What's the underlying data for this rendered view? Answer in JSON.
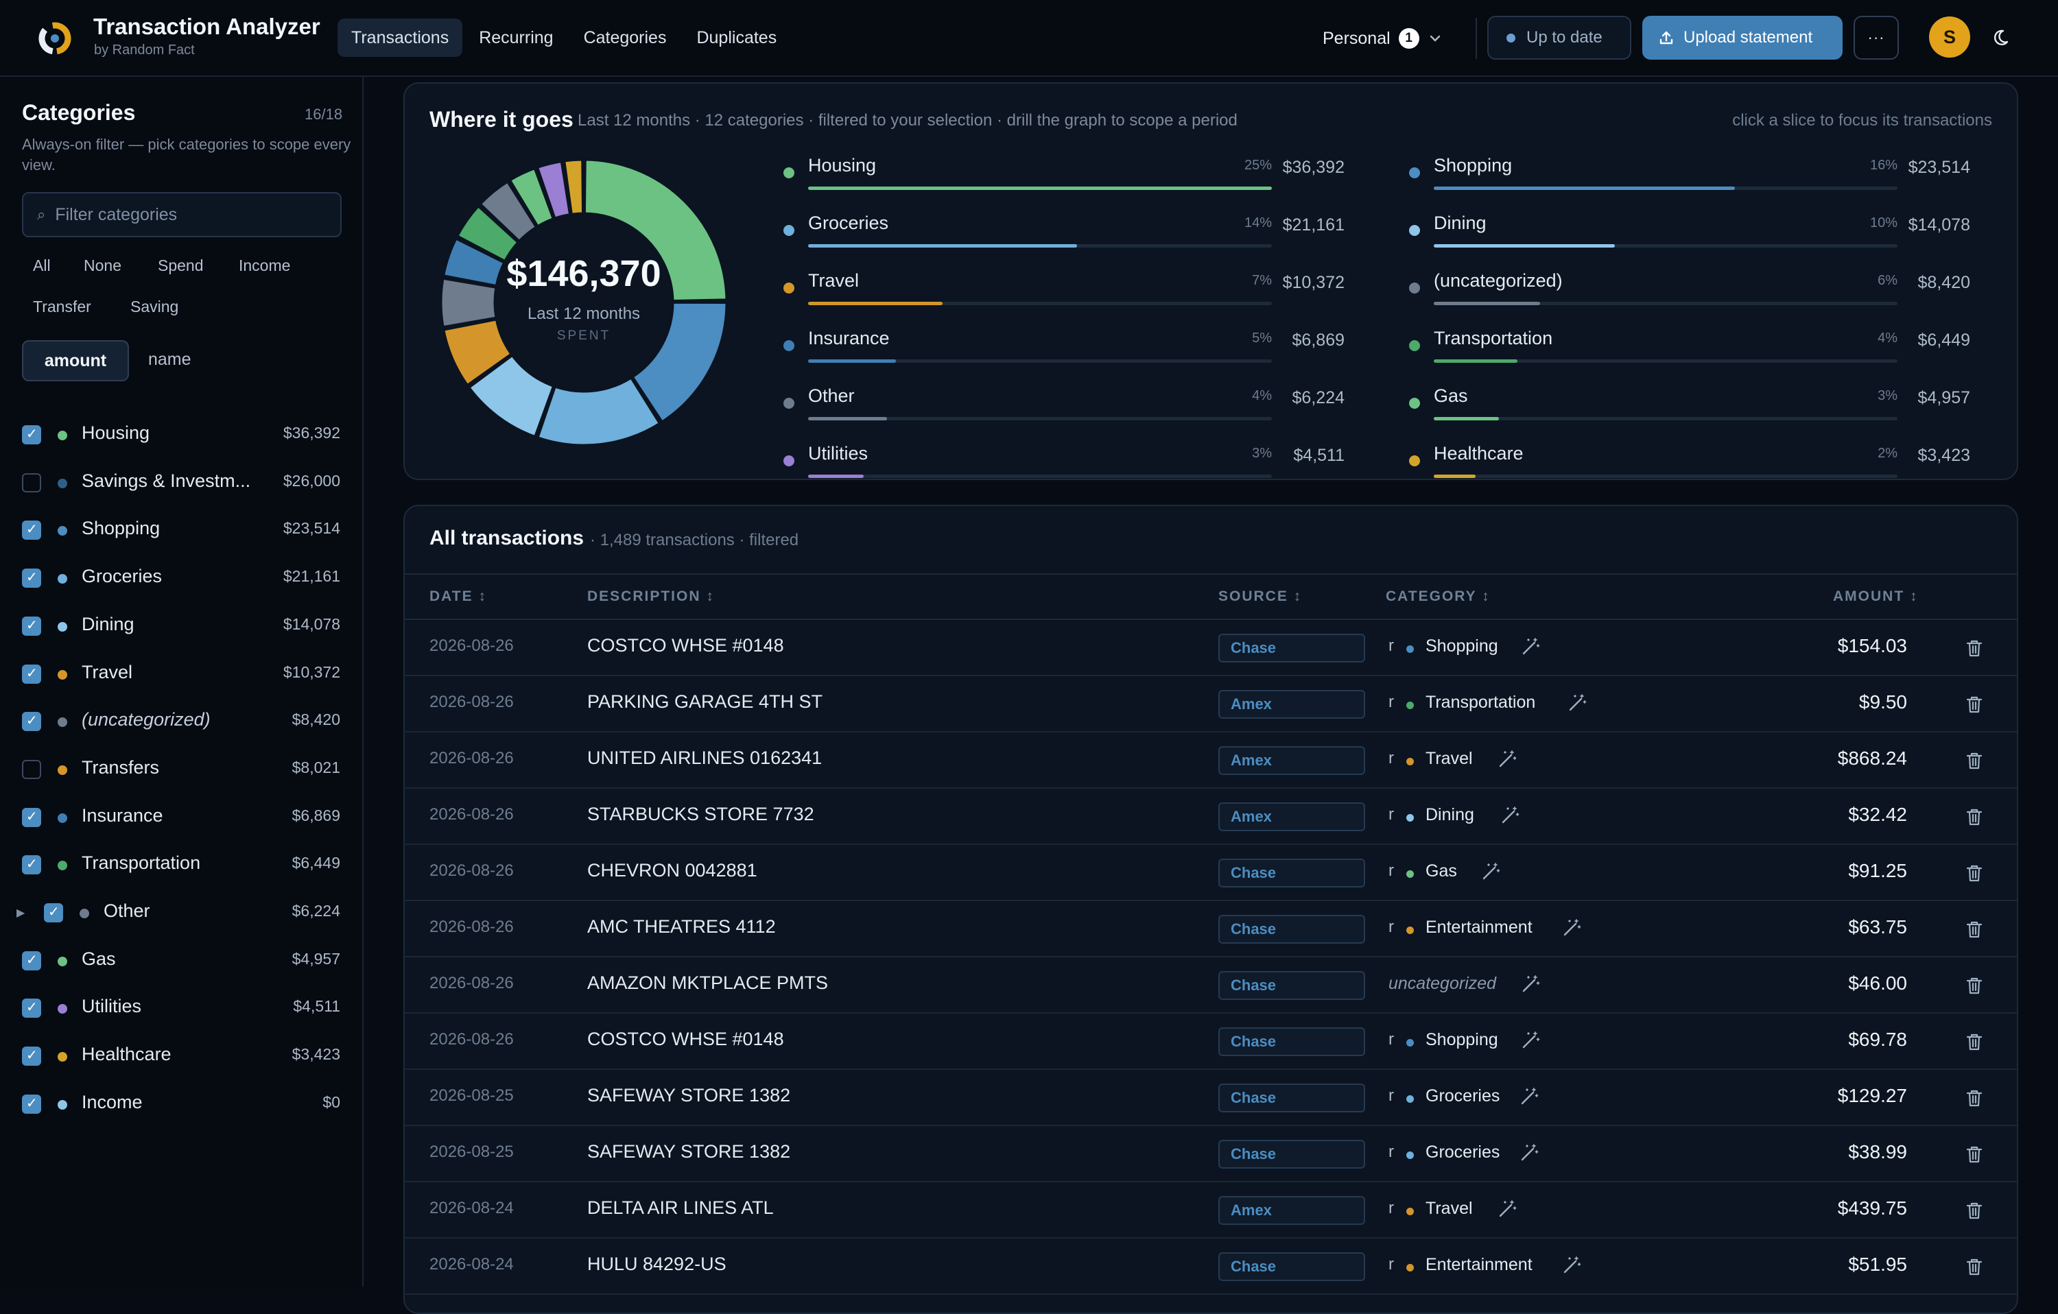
{
  "app": {
    "title": "Transaction Analyzer",
    "subtitle": "by Random Fact"
  },
  "nav": [
    "Transactions",
    "Recurring",
    "Categories",
    "Duplicates"
  ],
  "header": {
    "profile": "Personal",
    "profile_count": "1",
    "status": "Up to date",
    "upload": "Upload statement",
    "more": "···",
    "avatar": "S"
  },
  "sidebar": {
    "title": "Categories",
    "count": "16/18",
    "description": "Always-on filter — pick categories to scope every view.",
    "search_placeholder": "Filter categories",
    "filters": [
      "All",
      "None",
      "Spend",
      "Income",
      "Transfer",
      "Saving"
    ],
    "sort_amount": "amount",
    "sort_name": "name",
    "categories": [
      {
        "name": "Housing",
        "amount": "$36,392",
        "checked": true,
        "color": "#6cc283"
      },
      {
        "name": "Savings & Investm...",
        "amount": "$26,000",
        "checked": false,
        "color": "#2f5f86"
      },
      {
        "name": "Shopping",
        "amount": "$23,514",
        "checked": true,
        "color": "#4c8dc2"
      },
      {
        "name": "Groceries",
        "amount": "$21,161",
        "checked": true,
        "color": "#6fb0dc"
      },
      {
        "name": "Dining",
        "amount": "$14,078",
        "checked": true,
        "color": "#8ec6ea"
      },
      {
        "name": "Travel",
        "amount": "$10,372",
        "checked": true,
        "color": "#d4962a"
      },
      {
        "name": "(uncategorized)",
        "amount": "$8,420",
        "checked": true,
        "color": "#6e7c8e"
      },
      {
        "name": "Transfers",
        "amount": "$8,021",
        "checked": false,
        "color": "#d4962a"
      },
      {
        "name": "Insurance",
        "amount": "$6,869",
        "checked": true,
        "color": "#3f7fb4"
      },
      {
        "name": "Transportation",
        "amount": "$6,449",
        "checked": true,
        "color": "#4caa6a"
      },
      {
        "name": "Other",
        "amount": "$6,224",
        "checked": true,
        "color": "#6e7c8e"
      },
      {
        "name": "Gas",
        "amount": "$4,957",
        "checked": true,
        "color": "#6cc283"
      },
      {
        "name": "Utilities",
        "amount": "$4,511",
        "checked": true,
        "color": "#9a7fd4"
      },
      {
        "name": "Healthcare",
        "amount": "$3,423",
        "checked": true,
        "color": "#d4a42a"
      },
      {
        "name": "Income",
        "amount": "$0",
        "checked": true,
        "color": "#8ec6ea"
      }
    ]
  },
  "donut_panel": {
    "title": "Where it goes",
    "subtitle": "Last 12 months · 12 categories · filtered to your selection · drill the graph to scope a period",
    "hint": "click a slice to focus its transactions",
    "total": "$146,370",
    "period": "Last 12 months",
    "spent_label": "SPENT"
  },
  "chart_data": {
    "type": "pie",
    "categories": [
      "Housing",
      "Shopping",
      "Groceries",
      "Dining",
      "Travel",
      "(uncategorized)",
      "Insurance",
      "Transportation",
      "Other",
      "Gas",
      "Utilities",
      "Healthcare"
    ],
    "values": [
      36392,
      23514,
      21161,
      14078,
      10372,
      8420,
      6869,
      6449,
      6224,
      4957,
      4511,
      3423
    ],
    "percent_labels": [
      "25%",
      "16%",
      "14%",
      "10%",
      "7%",
      "6%",
      "5%",
      "4%",
      "4%",
      "3%",
      "3%",
      "2%"
    ],
    "amount_labels": [
      "$36,392",
      "$23,514",
      "$21,161",
      "$14,078",
      "$10,372",
      "$8,420",
      "$6,869",
      "$6,449",
      "$6,224",
      "$4,957",
      "$4,511",
      "$3,423"
    ],
    "colors": [
      "#6cc283",
      "#4c8dc2",
      "#6fb0dc",
      "#8ec6ea",
      "#d4962a",
      "#6e7c8e",
      "#3f7fb4",
      "#4caa6a",
      "#6e7c8e",
      "#6cc283",
      "#9a7fd4",
      "#d4a42a"
    ],
    "bar_fraction": [
      1.0,
      0.65,
      0.58,
      0.39,
      0.29,
      0.23,
      0.19,
      0.18,
      0.17,
      0.14,
      0.12,
      0.09
    ]
  },
  "transactions": {
    "title": "All transactions",
    "subtitle": "· 1,489 transactions · filtered",
    "headers": {
      "date": "DATE ↕",
      "description": "DESCRIPTION ↕",
      "source": "SOURCE ↕",
      "category": "CATEGORY ↕",
      "amount": "AMOUNT ↕"
    },
    "rows": [
      {
        "date": "2026-08-26",
        "description": "COSTCO WHSE #0148",
        "source": "Chase",
        "category": "Shopping",
        "color": "#4c8dc2",
        "amount": "$154.03"
      },
      {
        "date": "2026-08-26",
        "description": "PARKING GARAGE 4TH ST",
        "source": "Amex",
        "category": "Transportation",
        "color": "#4caa6a",
        "amount": "$9.50"
      },
      {
        "date": "2026-08-26",
        "description": "UNITED AIRLINES 0162341",
        "source": "Amex",
        "category": "Travel",
        "color": "#d4962a",
        "amount": "$868.24"
      },
      {
        "date": "2026-08-26",
        "description": "STARBUCKS STORE 7732",
        "source": "Amex",
        "category": "Dining",
        "color": "#8ec6ea",
        "amount": "$32.42"
      },
      {
        "date": "2026-08-26",
        "description": "CHEVRON 0042881",
        "source": "Chase",
        "category": "Gas",
        "color": "#6cc283",
        "amount": "$91.25"
      },
      {
        "date": "2026-08-26",
        "description": "AMC THEATRES 4112",
        "source": "Chase",
        "category": "Entertainment",
        "color": "#d4962a",
        "amount": "$63.75"
      },
      {
        "date": "2026-08-26",
        "description": "AMAZON MKTPLACE PMTS",
        "source": "Chase",
        "category": "uncategorized",
        "color": "",
        "amount": "$46.00"
      },
      {
        "date": "2026-08-26",
        "description": "COSTCO WHSE #0148",
        "source": "Chase",
        "category": "Shopping",
        "color": "#4c8dc2",
        "amount": "$69.78"
      },
      {
        "date": "2026-08-25",
        "description": "SAFEWAY STORE 1382",
        "source": "Chase",
        "category": "Groceries",
        "color": "#6fb0dc",
        "amount": "$129.27"
      },
      {
        "date": "2026-08-25",
        "description": "SAFEWAY STORE 1382",
        "source": "Chase",
        "category": "Groceries",
        "color": "#6fb0dc",
        "amount": "$38.99"
      },
      {
        "date": "2026-08-24",
        "description": "DELTA AIR LINES ATL",
        "source": "Amex",
        "category": "Travel",
        "color": "#d4962a",
        "amount": "$439.75"
      },
      {
        "date": "2026-08-24",
        "description": "HULU 84292-US",
        "source": "Chase",
        "category": "Entertainment",
        "color": "#d4962a",
        "amount": "$51.95"
      }
    ]
  }
}
